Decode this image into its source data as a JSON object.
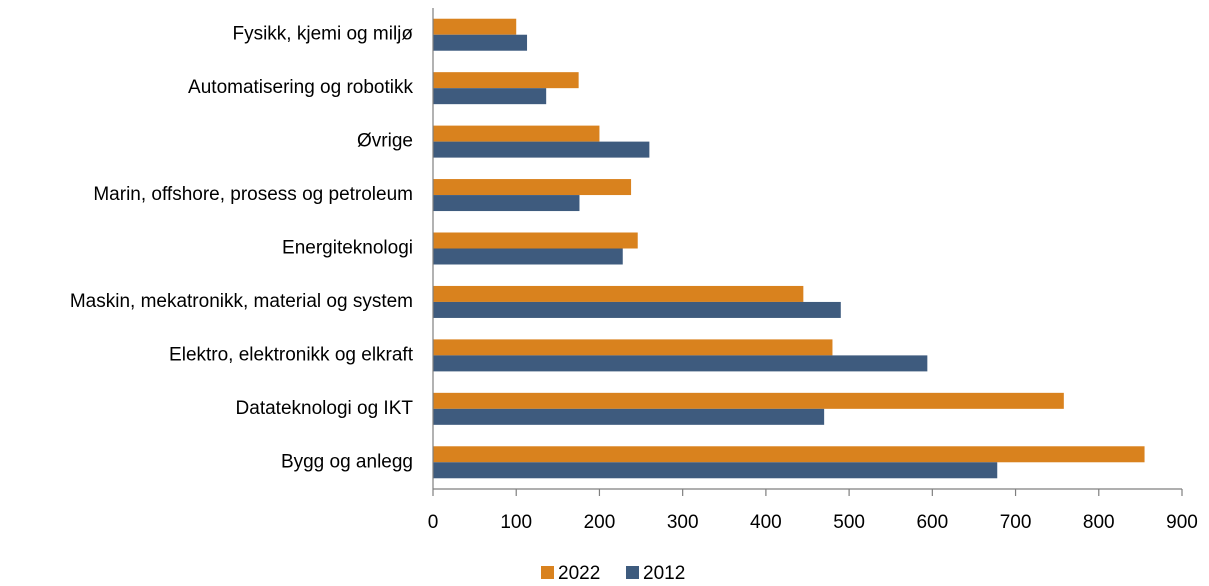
{
  "chart_data": {
    "type": "bar",
    "orientation": "horizontal",
    "categories": [
      "Fysikk, kjemi og miljø",
      "Automatisering og robotikk",
      "Øvrige",
      "Marin, offshore, prosess og petroleum",
      "Energiteknologi ",
      "Maskin, mekatronikk, material og system",
      "Elektro, elektronikk og elkraft",
      "Datateknologi og IKT",
      "Bygg og anlegg"
    ],
    "series": [
      {
        "name": "2022",
        "color": "#D9821E",
        "values": [
          100,
          175,
          200,
          238,
          246,
          445,
          480,
          758,
          855
        ]
      },
      {
        "name": "2012",
        "color": "#3E5B7E",
        "values": [
          113,
          136,
          260,
          176,
          228,
          490,
          594,
          470,
          678
        ]
      }
    ],
    "xlim": [
      0,
      900
    ],
    "xticks": [
      "0",
      "100",
      "200",
      "300",
      "400",
      "500",
      "600",
      "700",
      "800",
      "900"
    ],
    "grid": false,
    "legend_position": "bottom-center"
  }
}
